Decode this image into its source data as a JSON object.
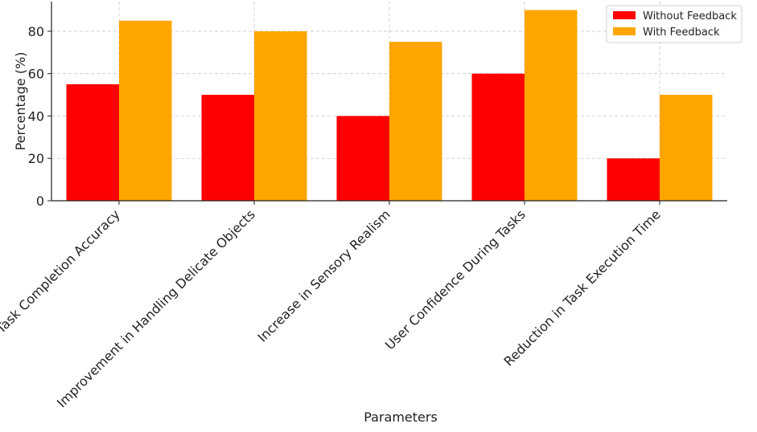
{
  "chart_data": {
    "type": "bar",
    "categories": [
      "Task Completion Accuracy",
      "Improvement in Handling Delicate Objects",
      "Increase in Sensory Realism",
      "User Confidence During Tasks",
      "Reduction in Task Execution Time"
    ],
    "series": [
      {
        "name": "Without Feedback",
        "color": "#ff0000",
        "values": [
          55,
          50,
          40,
          60,
          20
        ]
      },
      {
        "name": "With Feedback",
        "color": "#ffa500",
        "values": [
          85,
          80,
          75,
          90,
          50
        ]
      }
    ],
    "xlabel": "Parameters",
    "ylabel": "Percentage (%)",
    "ylim": [
      0,
      94
    ],
    "yticks": [
      0,
      20,
      40,
      60,
      80
    ],
    "grid": true,
    "legend_position": "top-right"
  }
}
